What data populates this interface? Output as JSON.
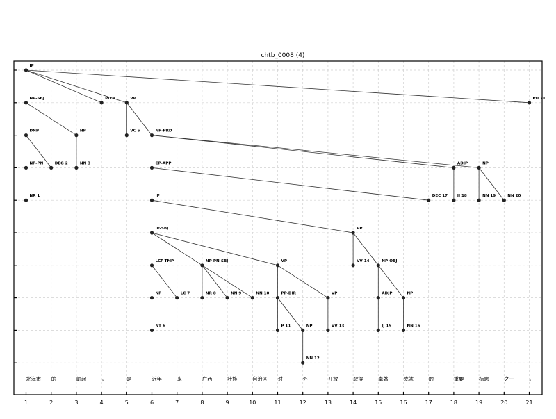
{
  "title": "chtb_0008 (4)",
  "x_ticks": [
    "1",
    "2",
    "3",
    "4",
    "5",
    "6",
    "7",
    "8",
    "9",
    "10",
    "11",
    "12",
    "13",
    "14",
    "15",
    "16",
    "17",
    "18",
    "19",
    "20",
    "21"
  ],
  "words": [
    "北海市",
    "的",
    "崛起",
    "，",
    "是",
    "近年",
    "来",
    "广西",
    "壮族",
    "自治区",
    "对",
    "外",
    "开放",
    "取得",
    "卓著",
    "成就",
    "的",
    "重要",
    "标志",
    "之一",
    "。"
  ],
  "nodes": [
    {
      "id": "IP_root",
      "label": "IP",
      "col": 1,
      "lvl": 0
    },
    {
      "id": "NP-SBJ",
      "label": "NP-SBJ",
      "col": 1,
      "lvl": 1
    },
    {
      "id": "PU4",
      "label": "PU 4",
      "col": 4,
      "lvl": 1
    },
    {
      "id": "VP_top",
      "label": "VP",
      "col": 5,
      "lvl": 1
    },
    {
      "id": "PU21",
      "label": "PU 21",
      "col": 21,
      "lvl": 1
    },
    {
      "id": "DNP",
      "label": "DNP",
      "col": 1,
      "lvl": 2
    },
    {
      "id": "NP_3",
      "label": "NP",
      "col": 3,
      "lvl": 2
    },
    {
      "id": "VC5",
      "label": "VC 5",
      "col": 5,
      "lvl": 2
    },
    {
      "id": "NP-PRD",
      "label": "NP-PRD",
      "col": 6,
      "lvl": 2
    },
    {
      "id": "NP-PN",
      "label": "NP-PN",
      "col": 1,
      "lvl": 3
    },
    {
      "id": "DEG2",
      "label": "DEG 2",
      "col": 2,
      "lvl": 3
    },
    {
      "id": "NN3",
      "label": "NN 3",
      "col": 3,
      "lvl": 3
    },
    {
      "id": "CP-APP",
      "label": "CP-APP",
      "col": 6,
      "lvl": 3
    },
    {
      "id": "ADJP_18",
      "label": "ADJP",
      "col": 18,
      "lvl": 3
    },
    {
      "id": "NP_19",
      "label": "NP",
      "col": 19,
      "lvl": 3
    },
    {
      "id": "NR1",
      "label": "NR 1",
      "col": 1,
      "lvl": 4
    },
    {
      "id": "IP_6",
      "label": "IP",
      "col": 6,
      "lvl": 4
    },
    {
      "id": "DEC17",
      "label": "DEC 17",
      "col": 17,
      "lvl": 4
    },
    {
      "id": "JJ18",
      "label": "JJ 18",
      "col": 18,
      "lvl": 4
    },
    {
      "id": "NN19",
      "label": "NN 19",
      "col": 19,
      "lvl": 4
    },
    {
      "id": "NN20",
      "label": "NN 20",
      "col": 20,
      "lvl": 4
    },
    {
      "id": "IP-SBJ",
      "label": "IP-SBJ",
      "col": 6,
      "lvl": 5
    },
    {
      "id": "VP_14",
      "label": "VP",
      "col": 14,
      "lvl": 5
    },
    {
      "id": "LCP-TMP",
      "label": "LCP-TMP",
      "col": 6,
      "lvl": 6
    },
    {
      "id": "NP-PN-SBJ",
      "label": "NP-PN-SBJ",
      "col": 8,
      "lvl": 6
    },
    {
      "id": "VP_11",
      "label": "VP",
      "col": 11,
      "lvl": 6
    },
    {
      "id": "VV14",
      "label": "VV 14",
      "col": 14,
      "lvl": 6
    },
    {
      "id": "NP-OBJ",
      "label": "NP-OBJ",
      "col": 15,
      "lvl": 6
    },
    {
      "id": "NP_6",
      "label": "NP",
      "col": 6,
      "lvl": 7
    },
    {
      "id": "LC7",
      "label": "LC 7",
      "col": 7,
      "lvl": 7
    },
    {
      "id": "NR8",
      "label": "NR 8",
      "col": 8,
      "lvl": 7
    },
    {
      "id": "NN9",
      "label": "NN 9",
      "col": 9,
      "lvl": 7
    },
    {
      "id": "NN10",
      "label": "NN 10",
      "col": 10,
      "lvl": 7
    },
    {
      "id": "PP-DIR",
      "label": "PP-DIR",
      "col": 11,
      "lvl": 7
    },
    {
      "id": "VP_13",
      "label": "VP",
      "col": 13,
      "lvl": 7
    },
    {
      "id": "ADJP_15",
      "label": "ADJP",
      "col": 15,
      "lvl": 7
    },
    {
      "id": "NP_16",
      "label": "NP",
      "col": 16,
      "lvl": 7
    },
    {
      "id": "NT6",
      "label": "NT 6",
      "col": 6,
      "lvl": 8
    },
    {
      "id": "P11",
      "label": "P 11",
      "col": 11,
      "lvl": 8
    },
    {
      "id": "NP_12",
      "label": "NP",
      "col": 12,
      "lvl": 8
    },
    {
      "id": "VV13",
      "label": "VV 13",
      "col": 13,
      "lvl": 8
    },
    {
      "id": "JJ15",
      "label": "JJ 15",
      "col": 15,
      "lvl": 8
    },
    {
      "id": "NN16",
      "label": "NN 16",
      "col": 16,
      "lvl": 8
    },
    {
      "id": "NN12",
      "label": "NN 12",
      "col": 12,
      "lvl": 9
    }
  ],
  "edges": [
    [
      "IP_root",
      "NP-SBJ"
    ],
    [
      "IP_root",
      "PU4"
    ],
    [
      "IP_root",
      "VP_top"
    ],
    [
      "IP_root",
      "PU21"
    ],
    [
      "NP-SBJ",
      "DNP"
    ],
    [
      "NP-SBJ",
      "NP_3"
    ],
    [
      "VP_top",
      "VC5"
    ],
    [
      "VP_top",
      "NP-PRD"
    ],
    [
      "DNP",
      "NP-PN"
    ],
    [
      "DNP",
      "DEG2"
    ],
    [
      "NP_3",
      "NN3"
    ],
    [
      "NP-PRD",
      "CP-APP"
    ],
    [
      "NP-PRD",
      "ADJP_18"
    ],
    [
      "NP-PRD",
      "NP_19"
    ],
    [
      "NP-PN",
      "NR1"
    ],
    [
      "CP-APP",
      "IP_6"
    ],
    [
      "CP-APP",
      "DEC17"
    ],
    [
      "ADJP_18",
      "JJ18"
    ],
    [
      "NP_19",
      "NN19"
    ],
    [
      "NP_19",
      "NN20"
    ],
    [
      "IP_6",
      "IP-SBJ"
    ],
    [
      "IP_6",
      "VP_14"
    ],
    [
      "IP-SBJ",
      "LCP-TMP"
    ],
    [
      "IP-SBJ",
      "NP-PN-SBJ"
    ],
    [
      "IP-SBJ",
      "VP_11"
    ],
    [
      "VP_14",
      "VV14"
    ],
    [
      "VP_14",
      "NP-OBJ"
    ],
    [
      "LCP-TMP",
      "NP_6"
    ],
    [
      "LCP-TMP",
      "LC7"
    ],
    [
      "NP-PN-SBJ",
      "NR8"
    ],
    [
      "NP-PN-SBJ",
      "NN9"
    ],
    [
      "NP-PN-SBJ",
      "NN10"
    ],
    [
      "VP_11",
      "PP-DIR"
    ],
    [
      "VP_11",
      "VP_13"
    ],
    [
      "NP-OBJ",
      "ADJP_15"
    ],
    [
      "NP-OBJ",
      "NP_16"
    ],
    [
      "NP_6",
      "NT6"
    ],
    [
      "PP-DIR",
      "P11"
    ],
    [
      "PP-DIR",
      "NP_12"
    ],
    [
      "VP_13",
      "VV13"
    ],
    [
      "ADJP_15",
      "JJ15"
    ],
    [
      "NP_16",
      "NN16"
    ],
    [
      "NP_12",
      "NN12"
    ]
  ]
}
